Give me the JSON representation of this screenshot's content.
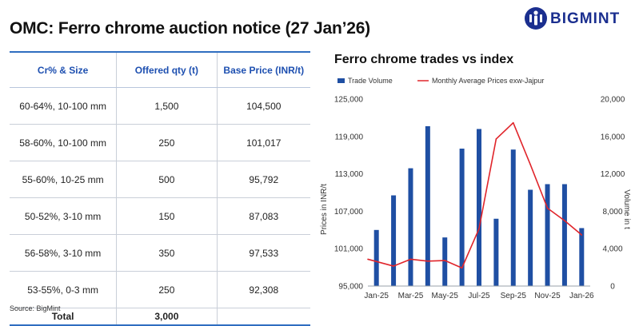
{
  "header": {
    "title": "OMC: Ferro chrome auction notice (27 Jan’26)",
    "logo_text": "BIGMINT"
  },
  "table": {
    "columns": [
      "Cr% & Size",
      "Offered qty (t)",
      "Base Price (INR/t)"
    ],
    "rows": [
      [
        "60-64%,  10-100 mm",
        "1,500",
        "104,500"
      ],
      [
        "58-60%,  10-100 mm",
        "250",
        "101,017"
      ],
      [
        "55-60%,  10-25 mm",
        "500",
        "95,792"
      ],
      [
        "50-52%,  3-10 mm",
        "150",
        "87,083"
      ],
      [
        "56-58%,  3-10 mm",
        "350",
        "97,533"
      ],
      [
        "53-55%,  0-3 mm",
        "250",
        "92,308"
      ]
    ],
    "total": [
      "Total",
      "3,000",
      ""
    ]
  },
  "source": "Source: BigMint",
  "colors": {
    "bar": "#1f4fa3",
    "line": "#e0252b",
    "table_accent": "#2f6ec0"
  },
  "chart_data": {
    "type": "bar+line",
    "title": "Ferro chrome trades vs index",
    "legend": [
      "Trade Volume",
      "Monthly Average Prices exw-Jajpur"
    ],
    "legend_position": "top",
    "y_left_label": "Prices in INR/t",
    "y_right_label": "Volume in t",
    "y_left_ticks": [
      "95,000",
      "101,000",
      "107,000",
      "113,000",
      "119,000",
      "125,000"
    ],
    "y_right_ticks": [
      "0",
      "4,000",
      "8,000",
      "12,000",
      "16,000",
      "20,000"
    ],
    "y_left_lim": [
      95000,
      125000
    ],
    "y_right_lim": [
      0,
      20000
    ],
    "x_tick_labels": [
      "Jan-25",
      "Mar-25",
      "May-25",
      "Jul-25",
      "Sep-25",
      "Nov-25",
      "Jan-26"
    ],
    "x": [
      "Jan-25",
      "Feb-25",
      "Mar-25",
      "Apr-25",
      "May-25",
      "Jun-25",
      "Jul-25",
      "Aug-25",
      "Sep-25",
      "Oct-25",
      "Nov-25",
      "Dec-25",
      "Jan-26"
    ],
    "series": [
      {
        "name": "Trade Volume",
        "kind": "bar",
        "axis": "right",
        "values": [
          6000,
          9700,
          12600,
          17100,
          5200,
          14700,
          16800,
          7200,
          14600,
          10300,
          10900,
          10900,
          6200
        ]
      },
      {
        "name": "Monthly Average Prices exw-Jajpur",
        "kind": "line",
        "axis": "left",
        "values": [
          99300,
          98200,
          99300,
          99000,
          99100,
          97900,
          104200,
          118600,
          121200,
          114500,
          107500,
          105500,
          103200
        ]
      }
    ],
    "grid": false
  }
}
